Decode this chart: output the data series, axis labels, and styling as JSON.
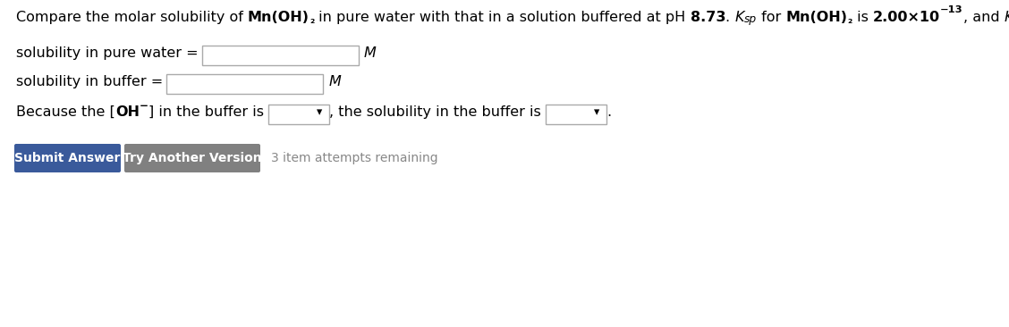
{
  "background_color": "#ffffff",
  "submit_btn_text": "Submit Answer",
  "submit_btn_color": "#3a5a9b",
  "try_btn_text": "Try Another Version",
  "try_btn_color": "#808080",
  "attempts_text": "3 item attempts remaining",
  "attempts_color": "#888888",
  "text_color": "#000000",
  "font_size": 11.5
}
